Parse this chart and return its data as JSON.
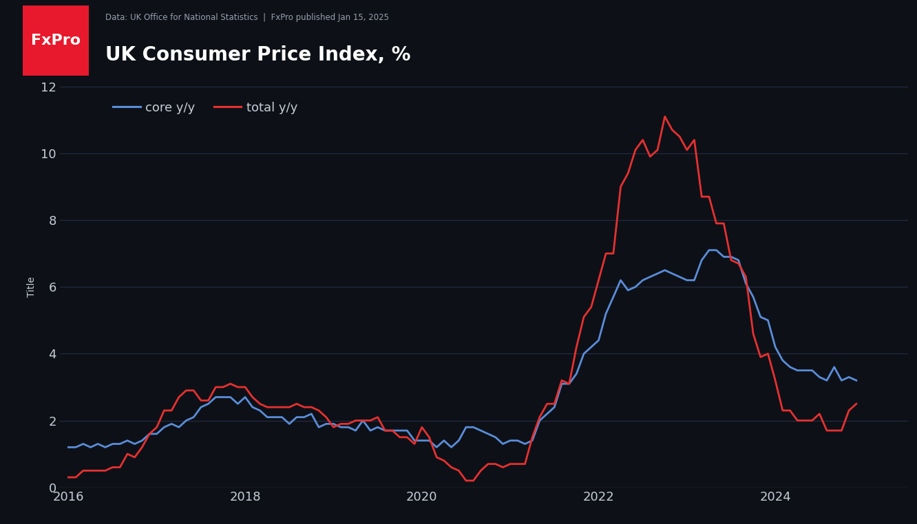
{
  "title": "UK Consumer Price Index, %",
  "subtitle": "Data: UK Office for National Statistics  |  FxPro published Jan 15, 2025",
  "ylabel": "Title",
  "bg_color": "#131722",
  "header_bg": "#1e2235",
  "plot_bg": "#0d1117",
  "grid_color": "#252d45",
  "text_color": "#c8ccd8",
  "fxpro_red": "#e8192c",
  "line_blue": "#5b8dd9",
  "line_red": "#e83030",
  "ylim": [
    0,
    12
  ],
  "yticks": [
    0,
    2,
    4,
    6,
    8,
    10,
    12
  ],
  "xlim_start": 2015.9,
  "xlim_end": 2025.5,
  "xtick_labels": [
    "2016",
    "2018",
    "2020",
    "2022",
    "2024"
  ],
  "xtick_values": [
    2016,
    2018,
    2020,
    2022,
    2024
  ],
  "legend_entries": [
    "core y/y",
    "total y/y"
  ],
  "dates_core": [
    2016.0,
    2016.083,
    2016.167,
    2016.25,
    2016.333,
    2016.417,
    2016.5,
    2016.583,
    2016.667,
    2016.75,
    2016.833,
    2016.917,
    2017.0,
    2017.083,
    2017.167,
    2017.25,
    2017.333,
    2017.417,
    2017.5,
    2017.583,
    2017.667,
    2017.75,
    2017.833,
    2017.917,
    2018.0,
    2018.083,
    2018.167,
    2018.25,
    2018.333,
    2018.417,
    2018.5,
    2018.583,
    2018.667,
    2018.75,
    2018.833,
    2018.917,
    2019.0,
    2019.083,
    2019.167,
    2019.25,
    2019.333,
    2019.417,
    2019.5,
    2019.583,
    2019.667,
    2019.75,
    2019.833,
    2019.917,
    2020.0,
    2020.083,
    2020.167,
    2020.25,
    2020.333,
    2020.417,
    2020.5,
    2020.583,
    2020.667,
    2020.75,
    2020.833,
    2020.917,
    2021.0,
    2021.083,
    2021.167,
    2021.25,
    2021.333,
    2021.417,
    2021.5,
    2021.583,
    2021.667,
    2021.75,
    2021.833,
    2021.917,
    2022.0,
    2022.083,
    2022.167,
    2022.25,
    2022.333,
    2022.417,
    2022.5,
    2022.583,
    2022.667,
    2022.75,
    2022.833,
    2022.917,
    2023.0,
    2023.083,
    2023.167,
    2023.25,
    2023.333,
    2023.417,
    2023.5,
    2023.583,
    2023.667,
    2023.75,
    2023.833,
    2023.917,
    2024.0,
    2024.083,
    2024.167,
    2024.25,
    2024.333,
    2024.417,
    2024.5,
    2024.583,
    2024.667,
    2024.75,
    2024.833,
    2024.917
  ],
  "values_core": [
    1.2,
    1.2,
    1.3,
    1.2,
    1.3,
    1.2,
    1.3,
    1.3,
    1.4,
    1.3,
    1.4,
    1.6,
    1.6,
    1.8,
    1.9,
    1.8,
    2.0,
    2.1,
    2.4,
    2.5,
    2.7,
    2.7,
    2.7,
    2.5,
    2.7,
    2.4,
    2.3,
    2.1,
    2.1,
    2.1,
    1.9,
    2.1,
    2.1,
    2.2,
    1.8,
    1.9,
    1.9,
    1.8,
    1.8,
    1.7,
    2.0,
    1.7,
    1.8,
    1.7,
    1.7,
    1.7,
    1.7,
    1.4,
    1.4,
    1.4,
    1.2,
    1.4,
    1.2,
    1.4,
    1.8,
    1.8,
    1.7,
    1.6,
    1.5,
    1.3,
    1.4,
    1.4,
    1.3,
    1.4,
    2.0,
    2.2,
    2.4,
    3.1,
    3.1,
    3.4,
    4.0,
    4.2,
    4.4,
    5.2,
    5.7,
    6.2,
    5.9,
    6.0,
    6.2,
    6.3,
    6.4,
    6.5,
    6.4,
    6.3,
    6.2,
    6.2,
    6.8,
    7.1,
    7.1,
    6.9,
    6.9,
    6.8,
    6.1,
    5.7,
    5.1,
    5.0,
    4.2,
    3.8,
    3.6,
    3.5,
    3.5,
    3.5,
    3.3,
    3.2,
    3.6,
    3.2,
    3.3,
    3.2
  ],
  "dates_total": [
    2016.0,
    2016.083,
    2016.167,
    2016.25,
    2016.333,
    2016.417,
    2016.5,
    2016.583,
    2016.667,
    2016.75,
    2016.833,
    2016.917,
    2017.0,
    2017.083,
    2017.167,
    2017.25,
    2017.333,
    2017.417,
    2017.5,
    2017.583,
    2017.667,
    2017.75,
    2017.833,
    2017.917,
    2018.0,
    2018.083,
    2018.167,
    2018.25,
    2018.333,
    2018.417,
    2018.5,
    2018.583,
    2018.667,
    2018.75,
    2018.833,
    2018.917,
    2019.0,
    2019.083,
    2019.167,
    2019.25,
    2019.333,
    2019.417,
    2019.5,
    2019.583,
    2019.667,
    2019.75,
    2019.833,
    2019.917,
    2020.0,
    2020.083,
    2020.167,
    2020.25,
    2020.333,
    2020.417,
    2020.5,
    2020.583,
    2020.667,
    2020.75,
    2020.833,
    2020.917,
    2021.0,
    2021.083,
    2021.167,
    2021.25,
    2021.333,
    2021.417,
    2021.5,
    2021.583,
    2021.667,
    2021.75,
    2021.833,
    2021.917,
    2022.0,
    2022.083,
    2022.167,
    2022.25,
    2022.333,
    2022.417,
    2022.5,
    2022.583,
    2022.667,
    2022.75,
    2022.833,
    2022.917,
    2023.0,
    2023.083,
    2023.167,
    2023.25,
    2023.333,
    2023.417,
    2023.5,
    2023.583,
    2023.667,
    2023.75,
    2023.833,
    2023.917,
    2024.0,
    2024.083,
    2024.167,
    2024.25,
    2024.333,
    2024.417,
    2024.5,
    2024.583,
    2024.667,
    2024.75,
    2024.833,
    2024.917
  ],
  "values_total": [
    0.3,
    0.3,
    0.5,
    0.5,
    0.5,
    0.5,
    0.6,
    0.6,
    1.0,
    0.9,
    1.2,
    1.6,
    1.8,
    2.3,
    2.3,
    2.7,
    2.9,
    2.9,
    2.6,
    2.6,
    3.0,
    3.0,
    3.1,
    3.0,
    3.0,
    2.7,
    2.5,
    2.4,
    2.4,
    2.4,
    2.4,
    2.5,
    2.4,
    2.4,
    2.3,
    2.1,
    1.8,
    1.9,
    1.9,
    2.0,
    2.0,
    2.0,
    2.1,
    1.7,
    1.7,
    1.5,
    1.5,
    1.3,
    1.8,
    1.5,
    0.9,
    0.8,
    0.6,
    0.5,
    0.2,
    0.2,
    0.5,
    0.7,
    0.7,
    0.6,
    0.7,
    0.7,
    0.7,
    1.5,
    2.1,
    2.5,
    2.5,
    3.2,
    3.1,
    4.2,
    5.1,
    5.4,
    6.2,
    7.0,
    7.0,
    9.0,
    9.4,
    10.1,
    10.4,
    9.9,
    10.1,
    11.1,
    10.7,
    10.5,
    10.1,
    10.4,
    8.7,
    8.7,
    7.9,
    7.9,
    6.8,
    6.7,
    6.3,
    4.6,
    3.9,
    4.0,
    3.2,
    2.3,
    2.3,
    2.0,
    2.0,
    2.0,
    2.2,
    1.7,
    1.7,
    1.7,
    2.3,
    2.5
  ]
}
